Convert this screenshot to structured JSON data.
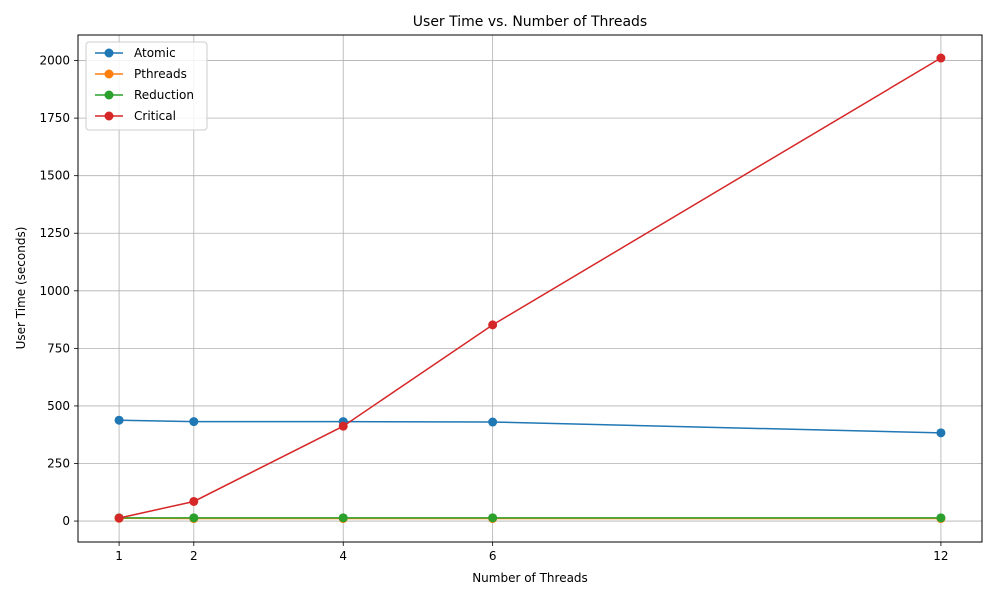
{
  "chart_data": {
    "type": "line",
    "title": "User Time vs. Number of Threads",
    "xlabel": "Number of Threads",
    "ylabel": "User Time (seconds)",
    "x": [
      1,
      2,
      4,
      6,
      12
    ],
    "x_ticks": [
      1,
      2,
      4,
      6,
      12
    ],
    "y_ticks": [
      0,
      250,
      500,
      750,
      1000,
      1250,
      1500,
      1750,
      2000
    ],
    "xlim": [
      0.45,
      12.55
    ],
    "ylim": [
      -91,
      2111
    ],
    "grid": true,
    "legend_position": "upper-left",
    "series": [
      {
        "name": "Atomic",
        "color": "#1f77b4",
        "values": [
          438,
          432,
          432,
          430,
          383
        ]
      },
      {
        "name": "Pthreads",
        "color": "#ff7f0e",
        "values": [
          12,
          11,
          11,
          11,
          11
        ]
      },
      {
        "name": "Reduction",
        "color": "#2ca02c",
        "values": [
          14,
          14,
          14,
          14,
          14
        ]
      },
      {
        "name": "Critical",
        "color": "#d62728",
        "values": [
          13,
          85,
          412,
          852,
          2011
        ]
      }
    ]
  }
}
